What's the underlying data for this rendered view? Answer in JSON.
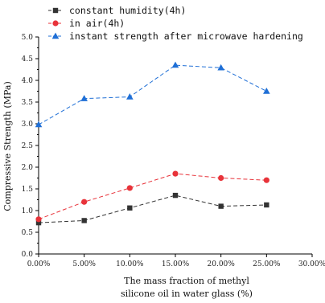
{
  "chart_data": {
    "type": "line",
    "xlabel_lines": [
      "The mass fraction of methyl",
      "silicone oil in water glass (%)"
    ],
    "ylabel": "Compressive Strength (MPa)",
    "x_tick_labels": [
      "0.00%",
      "5.00%",
      "10.00%",
      "15.00%",
      "20.00%",
      "25.00%",
      "30.00%"
    ],
    "x_ticks": [
      0,
      5,
      10,
      15,
      20,
      25,
      30
    ],
    "y_tick_labels": [
      "0.0",
      "0.5",
      "1.0",
      "1.5",
      "2.0",
      "2.5",
      "3.0",
      "3.5",
      "4.0",
      "4.5",
      "5.0"
    ],
    "y_ticks": [
      0,
      0.5,
      1.0,
      1.5,
      2.0,
      2.5,
      3.0,
      3.5,
      4.0,
      4.5,
      5.0
    ],
    "xlim": [
      0,
      30
    ],
    "ylim": [
      0,
      5
    ],
    "grid": false,
    "legend_position": "top",
    "x": [
      0,
      5,
      10,
      15,
      20,
      25
    ],
    "series": [
      {
        "name": "constant humidity(4h)",
        "values": [
          0.72,
          0.77,
          1.06,
          1.35,
          1.1,
          1.13
        ],
        "color": "#333333",
        "marker": "square",
        "line": "dash"
      },
      {
        "name": "in air(4h)",
        "values": [
          0.8,
          1.2,
          1.52,
          1.85,
          1.75,
          1.7
        ],
        "color": "#e8333a",
        "marker": "circle",
        "line": "dash"
      },
      {
        "name": "instant strength after microwave hardening",
        "values": [
          2.98,
          3.58,
          3.62,
          4.35,
          4.29,
          3.75
        ],
        "color": "#1f6fd6",
        "marker": "triangle",
        "line": "dash"
      }
    ]
  }
}
